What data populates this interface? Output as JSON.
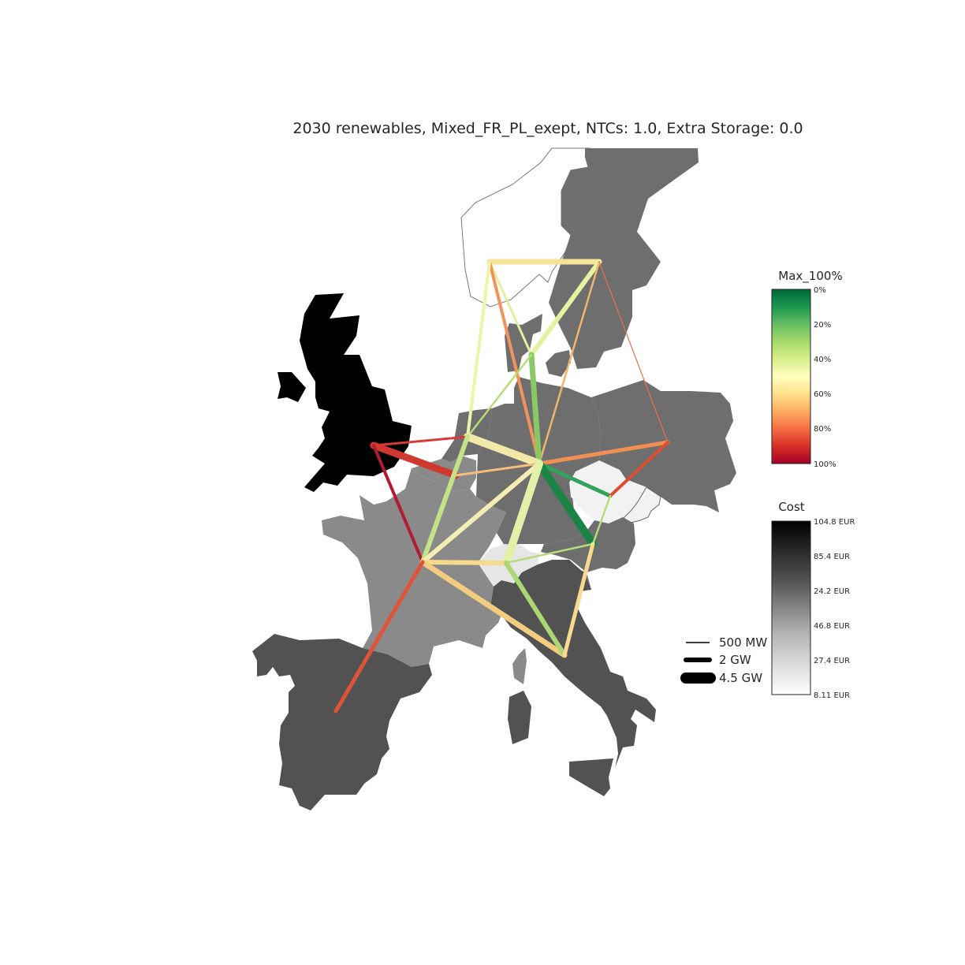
{
  "title": "2030 renewables, Mixed_FR_PL_exept, NTCs: 1.0, Extra Storage: 0.0",
  "colorbars": {
    "utilization": {
      "title": "Max_100%",
      "ticks": [
        "0%",
        "20%",
        "40%",
        "60%",
        "80%",
        "100%"
      ],
      "colormap": "RdYlGn (reversed)",
      "colors": [
        "#006837",
        "#1a9850",
        "#66bd63",
        "#a6d96a",
        "#d9ef8b",
        "#ffffbf",
        "#fee08b",
        "#fdae61",
        "#f46d43",
        "#d73027",
        "#a50026"
      ]
    },
    "cost": {
      "title": "Cost",
      "ticks": [
        "104.8 EUR",
        "85.4 EUR",
        "24.2 EUR",
        "46.8 EUR",
        "27.4 EUR",
        "8.11 EUR"
      ],
      "colormap": "Greys",
      "colors": [
        "#000000",
        "#ffffff"
      ]
    }
  },
  "width_legend": [
    {
      "label": "500 MW"
    },
    {
      "label": "2 GW"
    },
    {
      "label": "4.5 GW"
    }
  ],
  "countries": [
    {
      "name": "UK",
      "fill": "#000000"
    },
    {
      "name": "Ireland",
      "fill": "#000000"
    },
    {
      "name": "Norway",
      "fill": "#ffffff"
    },
    {
      "name": "Sweden",
      "fill": "#6e6e6e"
    },
    {
      "name": "Denmark",
      "fill": "#6e6e6e"
    },
    {
      "name": "Germany",
      "fill": "#6e6e6e"
    },
    {
      "name": "Netherlands",
      "fill": "#6e6e6e"
    },
    {
      "name": "Belgium",
      "fill": "#8a8a8a"
    },
    {
      "name": "France",
      "fill": "#8a8a8a"
    },
    {
      "name": "Poland",
      "fill": "#6e6e6e"
    },
    {
      "name": "Czechia",
      "fill": "#f2f2f2"
    },
    {
      "name": "Slovakia",
      "fill": "#f2f2f2"
    },
    {
      "name": "Austria",
      "fill": "#6e6e6e"
    },
    {
      "name": "Switzerland",
      "fill": "#e6e6e6"
    },
    {
      "name": "Italy",
      "fill": "#525252"
    },
    {
      "name": "Spain",
      "fill": "#525252"
    },
    {
      "name": "Corsica",
      "fill": "#8a8a8a"
    },
    {
      "name": "Sardinia",
      "fill": "#525252"
    },
    {
      "name": "Sicily",
      "fill": "#525252"
    },
    {
      "name": "Slovenia",
      "fill": "#6e6e6e"
    }
  ],
  "nodes": [
    "UK",
    "NO",
    "SE",
    "DK",
    "DE",
    "NL",
    "BE",
    "FR",
    "PL",
    "CZ",
    "AT",
    "CH",
    "IT",
    "ES"
  ],
  "links": [
    {
      "from": "NO",
      "to": "SE",
      "color": "#f6e397",
      "width": 7
    },
    {
      "from": "SE",
      "to": "DK",
      "color": "#e7f1a0",
      "width": 6
    },
    {
      "from": "SE",
      "to": "DE",
      "color": "#f3b56b",
      "width": 2.5
    },
    {
      "from": "SE",
      "to": "PL",
      "color": "#e8704e",
      "width": 1.2
    },
    {
      "from": "NO",
      "to": "DK",
      "color": "#e2f0a0",
      "width": 3
    },
    {
      "from": "NO",
      "to": "DE",
      "color": "#f0945a",
      "width": 4
    },
    {
      "from": "NO",
      "to": "NL",
      "color": "#eef5a8",
      "width": 4
    },
    {
      "from": "DK",
      "to": "DE",
      "color": "#8ac866",
      "width": 7
    },
    {
      "from": "DK",
      "to": "NL",
      "color": "#b8dc7c",
      "width": 2.5
    },
    {
      "from": "NL",
      "to": "DE",
      "color": "#f2e8a8",
      "width": 10
    },
    {
      "from": "UK",
      "to": "NL",
      "color": "#d83a36",
      "width": 3
    },
    {
      "from": "UK",
      "to": "BE",
      "color": "#d0392f",
      "width": 9
    },
    {
      "from": "UK",
      "to": "FR",
      "color": "#b01c30",
      "width": 4
    },
    {
      "from": "BE",
      "to": "DE",
      "color": "#f4bf78",
      "width": 3
    },
    {
      "from": "NL",
      "to": "FR",
      "color": "#c4e288",
      "width": 6
    },
    {
      "from": "FR",
      "to": "DE",
      "color": "#f2eeb4",
      "width": 6
    },
    {
      "from": "DE",
      "to": "PL",
      "color": "#f09055",
      "width": 5
    },
    {
      "from": "DE",
      "to": "CZ",
      "color": "#32a35a",
      "width": 5
    },
    {
      "from": "DE",
      "to": "AT",
      "color": "#1a8346",
      "width": 10
    },
    {
      "from": "DE",
      "to": "CH",
      "color": "#e2f0a8",
      "width": 10
    },
    {
      "from": "PL",
      "to": "CZ",
      "color": "#de4e30",
      "width": 4
    },
    {
      "from": "CZ",
      "to": "AT",
      "color": "#b8dc7c",
      "width": 2.5
    },
    {
      "from": "FR",
      "to": "CH",
      "color": "#f6da8e",
      "width": 6
    },
    {
      "from": "FR",
      "to": "IT",
      "color": "#f4cc80",
      "width": 7
    },
    {
      "from": "FR",
      "to": "ES",
      "color": "#de5438",
      "width": 5
    },
    {
      "from": "CH",
      "to": "AT",
      "color": "#b8dc7c",
      "width": 2.5
    },
    {
      "from": "CH",
      "to": "IT",
      "color": "#acd874",
      "width": 6
    },
    {
      "from": "AT",
      "to": "IT",
      "color": "#f8da8e",
      "width": 5
    }
  ]
}
